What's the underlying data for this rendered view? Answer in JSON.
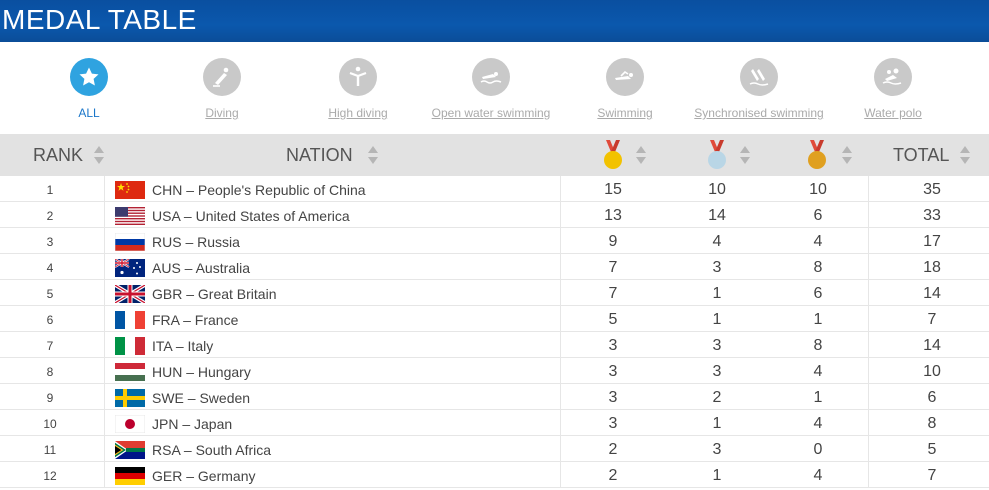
{
  "header": {
    "title": "MEDAL TABLE"
  },
  "filters": [
    {
      "label": "ALL",
      "icon": "star-icon",
      "active": true
    },
    {
      "label": "Diving",
      "icon": "diving-icon"
    },
    {
      "label": "High diving",
      "icon": "high-diving-icon"
    },
    {
      "label": "Open water swimming",
      "icon": "open-water-swimming-icon"
    },
    {
      "label": "Swimming",
      "icon": "swimming-icon"
    },
    {
      "label": "Synchronised swimming",
      "icon": "synchronised-swimming-icon"
    },
    {
      "label": "Water polo",
      "icon": "water-polo-icon"
    }
  ],
  "table": {
    "headers": {
      "rank": "RANK",
      "nation": "NATION",
      "total": "TOTAL"
    },
    "medal_icons": [
      "gold-medal-icon",
      "silver-medal-icon",
      "bronze-medal-icon"
    ],
    "rows": [
      {
        "rank": "1",
        "nation": "CHN – People's Republic of China",
        "flag": "china-flag",
        "gold": "15",
        "silver": "10",
        "bronze": "10",
        "total": "35"
      },
      {
        "rank": "2",
        "nation": "USA – United States of America",
        "flag": "usa-flag",
        "gold": "13",
        "silver": "14",
        "bronze": "6",
        "total": "33"
      },
      {
        "rank": "3",
        "nation": "RUS – Russia",
        "flag": "russia-flag",
        "gold": "9",
        "silver": "4",
        "bronze": "4",
        "total": "17"
      },
      {
        "rank": "4",
        "nation": "AUS – Australia",
        "flag": "australia-flag",
        "gold": "7",
        "silver": "3",
        "bronze": "8",
        "total": "18"
      },
      {
        "rank": "5",
        "nation": "GBR – Great Britain",
        "flag": "great-britain-flag",
        "gold": "7",
        "silver": "1",
        "bronze": "6",
        "total": "14"
      },
      {
        "rank": "6",
        "nation": "FRA – France",
        "flag": "france-flag",
        "gold": "5",
        "silver": "1",
        "bronze": "1",
        "total": "7"
      },
      {
        "rank": "7",
        "nation": "ITA – Italy",
        "flag": "italy-flag",
        "gold": "3",
        "silver": "3",
        "bronze": "8",
        "total": "14"
      },
      {
        "rank": "8",
        "nation": "HUN – Hungary",
        "flag": "hungary-flag",
        "gold": "3",
        "silver": "3",
        "bronze": "4",
        "total": "10"
      },
      {
        "rank": "9",
        "nation": "SWE – Sweden",
        "flag": "sweden-flag",
        "gold": "3",
        "silver": "2",
        "bronze": "1",
        "total": "6"
      },
      {
        "rank": "10",
        "nation": "JPN – Japan",
        "flag": "japan-flag",
        "gold": "3",
        "silver": "1",
        "bronze": "4",
        "total": "8"
      },
      {
        "rank": "11",
        "nation": "RSA – South Africa",
        "flag": "south-africa-flag",
        "gold": "2",
        "silver": "3",
        "bronze": "0",
        "total": "5"
      },
      {
        "rank": "12",
        "nation": "GER – Germany",
        "flag": "germany-flag",
        "gold": "2",
        "silver": "1",
        "bronze": "4",
        "total": "7"
      }
    ]
  },
  "colors": {
    "header_bg": "#0b58ad",
    "active_filter": "#2fa3e0",
    "inactive_filter": "#c9c9c9",
    "gold": "#f2c200",
    "silver": "#b9d6e6",
    "bronze": "#e0a020",
    "ribbon": "#e04a3a"
  }
}
